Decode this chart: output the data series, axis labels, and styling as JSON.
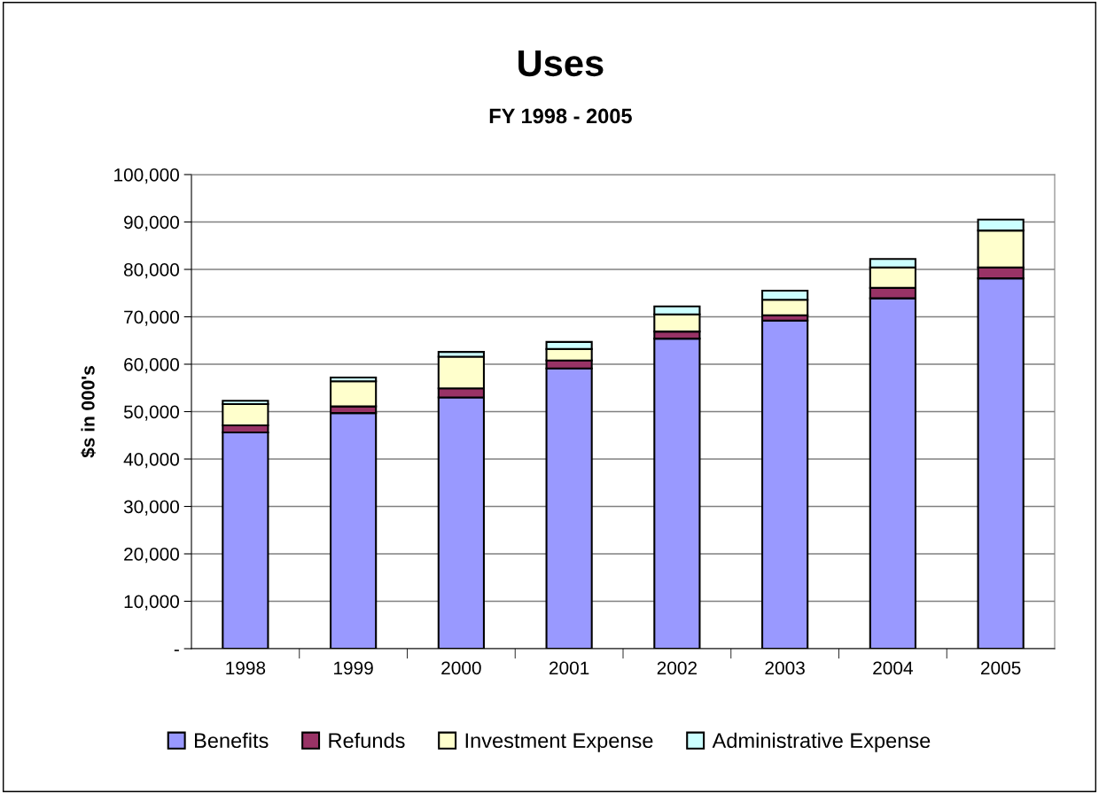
{
  "chart_data": {
    "type": "bar",
    "title": "Uses",
    "subtitle": "FY 1998 - 2005",
    "ylabel": "$s in 000's",
    "stacked": true,
    "categories": [
      "1998",
      "1999",
      "2000",
      "2001",
      "2002",
      "2003",
      "2004",
      "2005"
    ],
    "series": [
      {
        "name": "Benefits",
        "color": "#9999ff",
        "values": [
          45600,
          49700,
          53000,
          59100,
          65400,
          69200,
          73900,
          78100
        ]
      },
      {
        "name": "Refunds",
        "color": "#993366",
        "values": [
          1500,
          1400,
          1900,
          1700,
          1500,
          1100,
          2200,
          2300
        ]
      },
      {
        "name": "Investment Expense",
        "color": "#ffffcc",
        "values": [
          4500,
          5300,
          6700,
          2400,
          3600,
          3300,
          4300,
          7800
        ]
      },
      {
        "name": "Administrative Expense",
        "color": "#ccffff",
        "values": [
          700,
          800,
          1000,
          1500,
          1700,
          1900,
          1800,
          2300
        ]
      }
    ],
    "ylim": [
      0,
      100000
    ],
    "yticks": [
      {
        "value": 0,
        "label": "-"
      },
      {
        "value": 10000,
        "label": "10,000"
      },
      {
        "value": 20000,
        "label": "20,000"
      },
      {
        "value": 30000,
        "label": "30,000"
      },
      {
        "value": 40000,
        "label": "40,000"
      },
      {
        "value": 50000,
        "label": "50,000"
      },
      {
        "value": 60000,
        "label": "60,000"
      },
      {
        "value": 70000,
        "label": "70,000"
      },
      {
        "value": 80000,
        "label": "80,000"
      },
      {
        "value": 90000,
        "label": "90,000"
      },
      {
        "value": 100000,
        "label": "100,000"
      }
    ],
    "grid": "y",
    "legend": "bottom"
  }
}
